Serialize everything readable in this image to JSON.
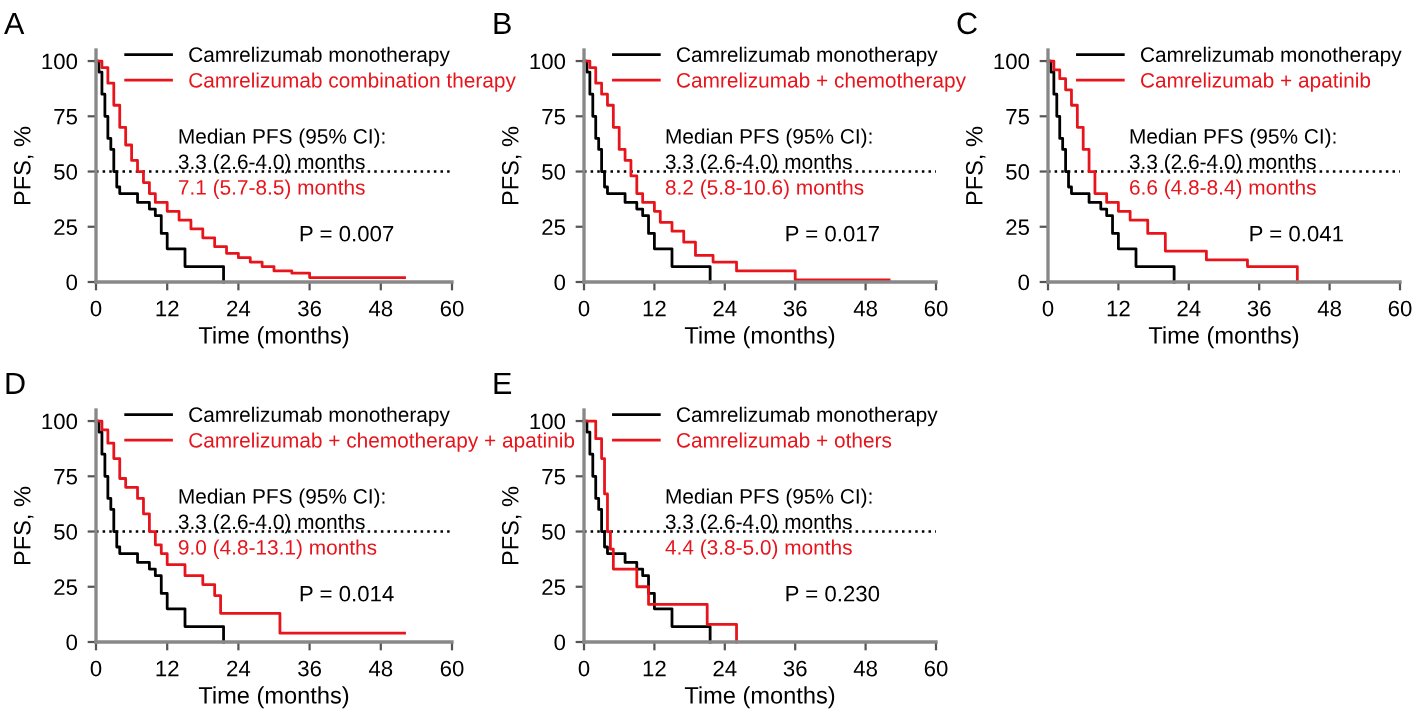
{
  "chart_data": [
    {
      "type": "step",
      "title": "A",
      "xlabel": "Time (months)",
      "ylabel": "PFS, %",
      "xlim": [
        0,
        60
      ],
      "xticks": [
        0,
        12,
        24,
        36,
        48,
        60
      ],
      "ylim": [
        0,
        105
      ],
      "yticks": [
        0,
        25,
        50,
        75,
        100
      ],
      "legend": "top",
      "grid": false,
      "series": [
        {
          "name": "Camrelizumab monotherapy",
          "color": "#000000",
          "x": [
            0,
            0.5,
            1,
            1.5,
            2,
            2.5,
            3,
            3.5,
            4,
            7,
            9,
            10,
            11,
            12,
            15,
            21.5
          ],
          "values": [
            100,
            95,
            85,
            75,
            65,
            60,
            50,
            43,
            40,
            36,
            33,
            30,
            22,
            15,
            7,
            0
          ]
        },
        {
          "name": "Camrelizumab combination therapy",
          "color": "#e8141c",
          "x": [
            0,
            1,
            2,
            3,
            4,
            5,
            6,
            7,
            8,
            9,
            10,
            12,
            14,
            16,
            18,
            20,
            22,
            24,
            26,
            28,
            30,
            33,
            36,
            52
          ],
          "values": [
            100,
            97,
            90,
            80,
            70,
            62,
            55,
            50,
            45,
            40,
            36,
            32,
            28,
            24,
            20,
            16,
            13,
            11,
            9,
            7,
            5,
            4,
            2,
            2
          ]
        }
      ],
      "ref_lines": [
        {
          "axis": "y",
          "value": 50,
          "line_style": "dotted"
        }
      ],
      "annotations": [
        "Median PFS (95% CI):",
        "3.3 (2.6-4.0) months",
        "7.1 (5.7-8.5) months",
        "P = 0.007"
      ]
    },
    {
      "type": "step",
      "title": "B",
      "xlabel": "Time (months)",
      "ylabel": "PFS, %",
      "xlim": [
        0,
        60
      ],
      "xticks": [
        0,
        12,
        24,
        36,
        48,
        60
      ],
      "ylim": [
        0,
        105
      ],
      "yticks": [
        0,
        25,
        50,
        75,
        100
      ],
      "legend": "top",
      "grid": false,
      "series": [
        {
          "name": "Camrelizumab monotherapy",
          "color": "#000000",
          "x": [
            0,
            0.5,
            1,
            1.5,
            2,
            2.5,
            3,
            3.5,
            4,
            7,
            9,
            10,
            11,
            12,
            15,
            21.5
          ],
          "values": [
            100,
            95,
            85,
            75,
            65,
            60,
            50,
            43,
            40,
            36,
            33,
            30,
            22,
            15,
            7,
            0
          ]
        },
        {
          "name": "Camrelizumab + chemotherapy",
          "color": "#e8141c",
          "x": [
            0,
            1,
            2,
            3,
            4,
            5,
            6,
            7,
            8,
            9,
            10,
            12,
            13,
            15,
            17,
            19,
            22,
            26,
            36,
            52
          ],
          "values": [
            100,
            97,
            90,
            85,
            80,
            70,
            60,
            55,
            48,
            40,
            36,
            32,
            27,
            23,
            18,
            12,
            9,
            5,
            1,
            1
          ]
        }
      ],
      "ref_lines": [
        {
          "axis": "y",
          "value": 50,
          "line_style": "dotted"
        }
      ],
      "annotations": [
        "Median PFS (95% CI):",
        "3.3 (2.6-4.0) months",
        "8.2 (5.8-10.6) months",
        "P = 0.017"
      ]
    },
    {
      "type": "step",
      "title": "C",
      "xlabel": "Time (months)",
      "ylabel": "PFS, %",
      "xlim": [
        0,
        60
      ],
      "xticks": [
        0,
        12,
        24,
        36,
        48,
        60
      ],
      "ylim": [
        0,
        105
      ],
      "yticks": [
        0,
        25,
        50,
        75,
        100
      ],
      "legend": "top",
      "grid": false,
      "series": [
        {
          "name": "Camrelizumab monotherapy",
          "color": "#000000",
          "x": [
            0,
            0.5,
            1,
            1.5,
            2,
            2.5,
            3,
            3.5,
            4,
            7,
            9,
            10,
            11,
            12,
            15,
            21.5
          ],
          "values": [
            100,
            95,
            85,
            75,
            65,
            60,
            50,
            43,
            40,
            36,
            33,
            30,
            22,
            15,
            7,
            0
          ]
        },
        {
          "name": "Camrelizumab + apatinib",
          "color": "#e8141c",
          "x": [
            0,
            1,
            2,
            3,
            4,
            5,
            6,
            7,
            8,
            10,
            12,
            14,
            17,
            20,
            27,
            34,
            42.5
          ],
          "values": [
            100,
            96,
            92,
            87,
            80,
            70,
            60,
            50,
            40,
            36,
            32,
            28,
            22,
            14,
            10,
            7,
            0
          ]
        }
      ],
      "ref_lines": [
        {
          "axis": "y",
          "value": 50,
          "line_style": "dotted"
        }
      ],
      "annotations": [
        "Median PFS (95% CI):",
        "3.3 (2.6-4.0) months",
        "6.6 (4.8-8.4) months",
        "P = 0.041"
      ]
    },
    {
      "type": "step",
      "title": "D",
      "xlabel": "Time (months)",
      "ylabel": "PFS, %",
      "xlim": [
        0,
        60
      ],
      "xticks": [
        0,
        12,
        24,
        36,
        48,
        60
      ],
      "ylim": [
        0,
        105
      ],
      "yticks": [
        0,
        25,
        50,
        75,
        100
      ],
      "legend": "top",
      "grid": false,
      "series": [
        {
          "name": "Camrelizumab monotherapy",
          "color": "#000000",
          "x": [
            0,
            0.5,
            1,
            1.5,
            2,
            2.5,
            3,
            3.5,
            4,
            7,
            9,
            10,
            11,
            12,
            15,
            21.5
          ],
          "values": [
            100,
            95,
            85,
            75,
            65,
            60,
            50,
            43,
            40,
            36,
            33,
            30,
            22,
            15,
            7,
            0
          ]
        },
        {
          "name": "Camrelizumab + chemotherapy + apatinib",
          "color": "#e8141c",
          "x": [
            0,
            1,
            2,
            3,
            4,
            5,
            7,
            8,
            9,
            10,
            11,
            12,
            15,
            18,
            20,
            21,
            31,
            52
          ],
          "values": [
            100,
            96,
            90,
            83,
            74,
            70,
            65,
            58,
            50,
            44,
            40,
            35,
            30,
            26,
            21,
            13,
            4,
            4
          ]
        }
      ],
      "ref_lines": [
        {
          "axis": "y",
          "value": 50,
          "line_style": "dotted"
        }
      ],
      "annotations": [
        "Median PFS (95% CI):",
        "3.3 (2.6-4.0) months",
        "9.0 (4.8-13.1) months",
        "P = 0.014"
      ]
    },
    {
      "type": "step",
      "title": "E",
      "xlabel": "Time (months)",
      "ylabel": "PFS, %",
      "xlim": [
        0,
        60
      ],
      "xticks": [
        0,
        12,
        24,
        36,
        48,
        60
      ],
      "ylim": [
        0,
        105
      ],
      "yticks": [
        0,
        25,
        50,
        75,
        100
      ],
      "legend": "top",
      "grid": false,
      "series": [
        {
          "name": "Camrelizumab monotherapy",
          "color": "#000000",
          "x": [
            0,
            0.5,
            1,
            1.5,
            2,
            2.5,
            3,
            3.5,
            4,
            7,
            9,
            10,
            11,
            12,
            15,
            21.5
          ],
          "values": [
            100,
            95,
            85,
            75,
            65,
            60,
            50,
            43,
            40,
            36,
            33,
            30,
            22,
            15,
            7,
            0
          ]
        },
        {
          "name": "Camrelizumab + others",
          "color": "#e8141c",
          "x": [
            0,
            2,
            3,
            3.5,
            4,
            4.5,
            5,
            9,
            11,
            21,
            26
          ],
          "values": [
            100,
            92,
            83,
            67,
            50,
            42,
            33,
            25,
            17,
            8,
            0
          ]
        }
      ],
      "ref_lines": [
        {
          "axis": "y",
          "value": 50,
          "line_style": "dotted"
        }
      ],
      "annotations": [
        "Median PFS (95% CI):",
        "3.3 (2.6-4.0) months",
        "4.4 (3.8-5.0) months",
        "P = 0.230"
      ]
    }
  ]
}
